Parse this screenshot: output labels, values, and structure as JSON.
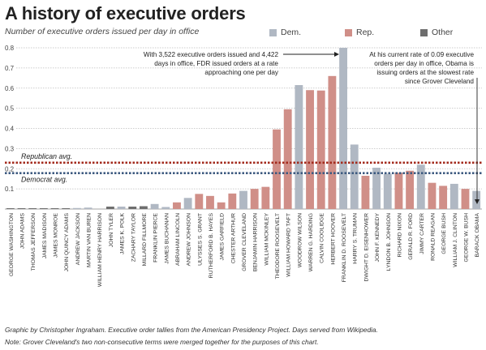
{
  "header": {
    "title": "A history of executive orders",
    "subtitle": "Number of executive orders issued per day in office"
  },
  "legend": [
    {
      "label": "Dem.",
      "color": "#b0b8c3"
    },
    {
      "label": "Rep.",
      "color": "#d08f88"
    },
    {
      "label": "Other",
      "color": "#6e6e6e"
    }
  ],
  "annotations": {
    "fdr": [
      "With 3,522 executive orders issued and 4,422",
      "days in office, FDR issued orders at a rate",
      "approaching one per day"
    ],
    "obama": [
      "At his current rate of 0.09 executive",
      "orders per day in office, Obama is",
      "issuing orders at the slowest rate",
      "since Grover Cleveland"
    ]
  },
  "footer": {
    "line1": "Graphic by Christopher Ingraham. Executive order tallies from the American Presidency Project. Days served from Wikipedia.",
    "line2": "Note: Grover Cleveland's two non-consecutive terms were merged together for the purposes of this chart."
  },
  "chart_data": {
    "type": "bar",
    "title": "A history of executive orders",
    "subtitle": "Number of executive orders issued per day in office",
    "ylim": [
      0,
      0.8
    ],
    "yticks": [
      "0.1",
      "0.2",
      "0.3",
      "0.4",
      "0.5",
      "0.6",
      "0.7",
      "0.8"
    ],
    "grid": true,
    "legend_position": "top-right",
    "categories": [
      "GEORGE WASHINGTON",
      "JOHN ADAMS",
      "THOMAS JEFFERSON",
      "JAMES MADISON",
      "JAMES MONROE",
      "JOHN QUINCY ADAMS",
      "ANDREW JACKSON",
      "MARTIN VAN BUREN",
      "WILLIAM HENRY HARRISON",
      "JOHN TYLER",
      "JAMES K. POLK",
      "ZACHARY TAYLOR",
      "MILLARD FILLMORE",
      "FRANKLIN PIERCE",
      "JAMES BUCHANAN",
      "ABRAHAM LINCOLN",
      "ANDREW JOHNSON",
      "ULYSSES S. GRANT",
      "RUTHERFORD B. HAYES",
      "JAMES GARFIELD",
      "CHESTER ARTHUR",
      "GROVER CLEVELAND",
      "BENJAMIN HARRISON",
      "WILLIAM MCKINLEY",
      "THEODORE ROOSEVELT",
      "WILLIAM HOWARD TAFT",
      "WOODROW WILSON",
      "WARREN G. HARDING",
      "CALVIN COOLIDGE",
      "HERBERT HOOVER",
      "FRANKLIN D. ROOSEVELT",
      "HARRY S. TRUMAN",
      "DWIGHT D. EISENHOWER",
      "JOHN F. KENNEDY",
      "LYNDON B. JOHNSON",
      "RICHARD NIXON",
      "GERALD R. FORD",
      "JIMMY CARTER",
      "RONALD REAGAN",
      "GEORGE BUSH",
      "WILLIAM J. CLINTON",
      "GEORGE W. BUSH",
      "BARACK OBAMA"
    ],
    "values": [
      0.003,
      0.001,
      0.002,
      0.001,
      0.001,
      0.002,
      0.005,
      0.007,
      0.0,
      0.012,
      0.012,
      0.012,
      0.014,
      0.025,
      0.01,
      0.033,
      0.055,
      0.075,
      0.065,
      0.033,
      0.077,
      0.09,
      0.1,
      0.11,
      0.395,
      0.495,
      0.615,
      0.59,
      0.588,
      0.66,
      0.8,
      0.32,
      0.165,
      0.205,
      0.175,
      0.18,
      0.19,
      0.22,
      0.13,
      0.115,
      0.125,
      0.1,
      0.09
    ],
    "parties": [
      "other",
      "other",
      "other",
      "other",
      "other",
      "other",
      "dem",
      "dem",
      "other",
      "other",
      "dem",
      "other",
      "other",
      "dem",
      "dem",
      "rep",
      "dem",
      "rep",
      "rep",
      "rep",
      "rep",
      "dem",
      "rep",
      "rep",
      "rep",
      "rep",
      "dem",
      "rep",
      "rep",
      "rep",
      "dem",
      "dem",
      "rep",
      "dem",
      "dem",
      "rep",
      "rep",
      "dem",
      "rep",
      "rep",
      "dem",
      "rep",
      "dem"
    ],
    "reference_lines": [
      {
        "label": "Republican avg.",
        "value": 0.23,
        "color": "#a32a1c"
      },
      {
        "label": "Democrat avg.",
        "value": 0.178,
        "color": "#3d5a80"
      }
    ]
  }
}
